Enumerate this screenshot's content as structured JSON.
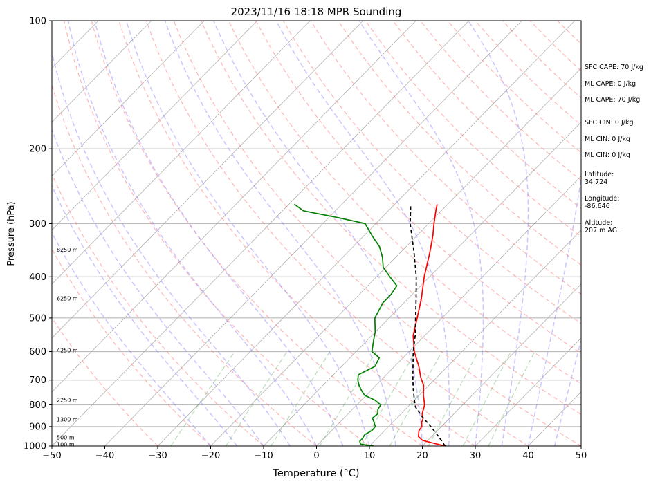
{
  "chart_data": {
    "type": "line",
    "title": "2023/11/16 18:18 MPR Sounding",
    "xlabel": "Temperature (°C)",
    "ylabel": "Pressure (hPa)",
    "xlim": [
      -50,
      50
    ],
    "ylim": [
      1000,
      100
    ],
    "y_scale": "log",
    "x_ticks": [
      "−50",
      "−40",
      "−30",
      "−20",
      "−10",
      "0",
      "10",
      "20",
      "30",
      "40",
      "50"
    ],
    "y_ticks": [
      "100",
      "200",
      "300",
      "400",
      "500",
      "600",
      "700",
      "800",
      "900",
      "1000"
    ],
    "height_labels": [
      {
        "p": 990,
        "label": "100 m"
      },
      {
        "p": 955,
        "label": "500 m"
      },
      {
        "p": 865,
        "label": "1300 m"
      },
      {
        "p": 780,
        "label": "2250 m"
      },
      {
        "p": 595,
        "label": "4250 m"
      },
      {
        "p": 450,
        "label": "6250 m"
      },
      {
        "p": 345,
        "label": "8250 m"
      }
    ],
    "series": [
      {
        "color": "#ff0000",
        "p": [
          1000,
          990,
          970,
          950,
          920,
          900,
          880,
          860,
          840,
          800,
          760,
          720,
          690,
          650,
          600,
          550,
          500,
          450,
          400,
          350,
          320,
          300,
          280,
          270
        ],
        "t": [
          24.3,
          22.5,
          19.0,
          17.5,
          16.5,
          16.3,
          15.5,
          15.0,
          14.0,
          12.8,
          10.8,
          9.0,
          7.0,
          4.6,
          1.0,
          -2.2,
          -4.7,
          -7.5,
          -11.0,
          -14.5,
          -17.0,
          -19.0,
          -21.0,
          -22.0
        ]
      },
      {
        "color": "#008000",
        "p": [
          1000,
          990,
          975,
          960,
          940,
          920,
          900,
          880,
          860,
          840,
          820,
          800,
          780,
          760,
          740,
          720,
          700,
          680,
          650,
          620,
          600,
          580,
          560,
          540,
          500,
          460,
          440,
          420,
          400,
          380,
          360,
          340,
          320,
          300,
          290,
          280,
          270
        ],
        "t": [
          10.8,
          8.0,
          7.3,
          7.3,
          7.0,
          7.6,
          7.5,
          6.5,
          5.4,
          5.6,
          4.8,
          4.5,
          2.5,
          -0.3,
          -1.8,
          -3.2,
          -4.4,
          -5.3,
          -3.7,
          -4.5,
          -7.0,
          -8.0,
          -9.0,
          -10.0,
          -12.7,
          -14.0,
          -14.0,
          -14.5,
          -17.5,
          -20.5,
          -22.5,
          -25.0,
          -28.5,
          -32.0,
          -38.5,
          -46.0,
          -49.0
        ]
      },
      {
        "color": "#000000",
        "dashed": true,
        "p": [
          1000,
          950,
          900,
          850,
          810,
          780,
          740,
          700,
          650,
          600,
          550,
          500,
          450,
          400,
          350,
          300,
          270
        ],
        "t": [
          24.3,
          21.3,
          18.0,
          14.3,
          11.5,
          10.0,
          8.0,
          6.0,
          3.5,
          0.8,
          -1.8,
          -5.0,
          -8.5,
          -12.5,
          -17.5,
          -23.5,
          -27.0
        ]
      }
    ]
  },
  "stats": {
    "sfc_cape": "SFC CAPE: 70 J/kg",
    "ml_cape_1": "ML CAPE: 0 J/kg",
    "ml_cape_2": "ML CAPE: 70 J/kg",
    "sfc_cin": "SFC CIN: 0 J/kg",
    "ml_cin_1": "ML CIN: 0 J/kg",
    "ml_cin_2": "ML CIN: 0 J/kg",
    "latitude": "Latitude:\n34.724",
    "longitude": "Longitude:\n-86.646",
    "altitude": "Altitude:\n207 m AGL"
  }
}
